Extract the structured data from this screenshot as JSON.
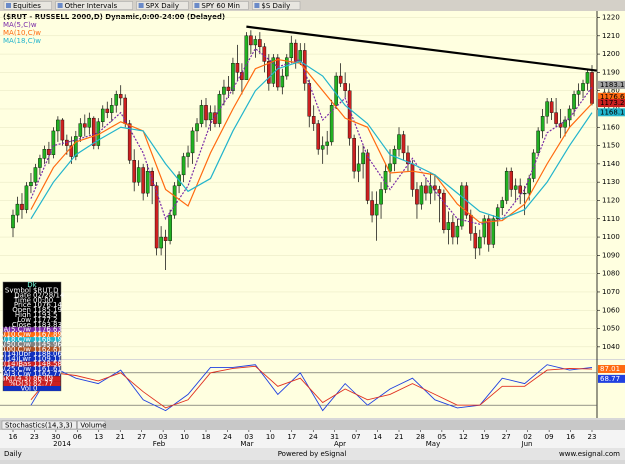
{
  "toolbar": {
    "items": [
      "Equities",
      "Other Intervals",
      "SPX Daily",
      "SPY 60 Min",
      "$S Daily"
    ]
  },
  "chart_data": [
    {
      "type": "candlestick",
      "title": "($RUT - RUSSELL 2000,D) Dynamic,0:00-24:00 (Delayed)",
      "up_color": "#22b022",
      "down_color": "#cc2020",
      "candles": [
        [
          1105,
          1115,
          1100,
          1112
        ],
        [
          1112,
          1122,
          1108,
          1118
        ],
        [
          1118,
          1124,
          1110,
          1115
        ],
        [
          1115,
          1130,
          1113,
          1128
        ],
        [
          1128,
          1135,
          1124,
          1130
        ],
        [
          1130,
          1140,
          1128,
          1138
        ],
        [
          1138,
          1145,
          1134,
          1143
        ],
        [
          1143,
          1150,
          1140,
          1148
        ],
        [
          1148,
          1152,
          1140,
          1145
        ],
        [
          1145,
          1160,
          1143,
          1158
        ],
        [
          1158,
          1166,
          1152,
          1164
        ],
        [
          1164,
          1165,
          1150,
          1153
        ],
        [
          1153,
          1156,
          1145,
          1150
        ],
        [
          1150,
          1155,
          1140,
          1144
        ],
        [
          1144,
          1158,
          1142,
          1155
        ],
        [
          1155,
          1165,
          1152,
          1162
        ],
        [
          1162,
          1167,
          1155,
          1160
        ],
        [
          1160,
          1168,
          1156,
          1165
        ],
        [
          1165,
          1166,
          1148,
          1150
        ],
        [
          1150,
          1165,
          1148,
          1163
        ],
        [
          1163,
          1172,
          1160,
          1170
        ],
        [
          1170,
          1174,
          1165,
          1168
        ],
        [
          1168,
          1176,
          1163,
          1172
        ],
        [
          1172,
          1180,
          1168,
          1178
        ],
        [
          1178,
          1183,
          1172,
          1176
        ],
        [
          1176,
          1178,
          1160,
          1162
        ],
        [
          1162,
          1164,
          1140,
          1142
        ],
        [
          1142,
          1148,
          1125,
          1130
        ],
        [
          1130,
          1142,
          1128,
          1138
        ],
        [
          1138,
          1140,
          1120,
          1124
        ],
        [
          1124,
          1140,
          1122,
          1136
        ],
        [
          1136,
          1138,
          1118,
          1128
        ],
        [
          1128,
          1130,
          1090,
          1094
        ],
        [
          1094,
          1106,
          1090,
          1100
        ],
        [
          1100,
          1104,
          1082,
          1098
        ],
        [
          1098,
          1115,
          1096,
          1112
        ],
        [
          1112,
          1130,
          1110,
          1128
        ],
        [
          1128,
          1136,
          1124,
          1134
        ],
        [
          1134,
          1146,
          1130,
          1144
        ],
        [
          1144,
          1150,
          1138,
          1146
        ],
        [
          1146,
          1160,
          1140,
          1158
        ],
        [
          1158,
          1165,
          1152,
          1162
        ],
        [
          1162,
          1175,
          1160,
          1172
        ],
        [
          1172,
          1176,
          1160,
          1164
        ],
        [
          1164,
          1172,
          1158,
          1168
        ],
        [
          1168,
          1172,
          1160,
          1162
        ],
        [
          1162,
          1180,
          1160,
          1178
        ],
        [
          1178,
          1186,
          1172,
          1182
        ],
        [
          1182,
          1188,
          1176,
          1180
        ],
        [
          1180,
          1198,
          1178,
          1195
        ],
        [
          1195,
          1205,
          1185,
          1190
        ],
        [
          1190,
          1195,
          1178,
          1186
        ],
        [
          1186,
          1212,
          1186,
          1210
        ],
        [
          1210,
          1213,
          1200,
          1205
        ],
        [
          1205,
          1210,
          1198,
          1208
        ],
        [
          1208,
          1212,
          1200,
          1204
        ],
        [
          1204,
          1206,
          1190,
          1196
        ],
        [
          1196,
          1200,
          1180,
          1184
        ],
        [
          1184,
          1200,
          1182,
          1198
        ],
        [
          1198,
          1200,
          1180,
          1182
        ],
        [
          1182,
          1192,
          1178,
          1188
        ],
        [
          1188,
          1200,
          1186,
          1198
        ],
        [
          1198,
          1210,
          1195,
          1206
        ],
        [
          1206,
          1208,
          1192,
          1196
        ],
        [
          1196,
          1206,
          1194,
          1202
        ],
        [
          1202,
          1206,
          1180,
          1184
        ],
        [
          1184,
          1186,
          1160,
          1166
        ],
        [
          1166,
          1172,
          1158,
          1162
        ],
        [
          1162,
          1164,
          1145,
          1148
        ],
        [
          1148,
          1155,
          1140,
          1150
        ],
        [
          1150,
          1158,
          1145,
          1152
        ],
        [
          1152,
          1175,
          1150,
          1172
        ],
        [
          1172,
          1190,
          1170,
          1188
        ],
        [
          1188,
          1195,
          1182,
          1184
        ],
        [
          1184,
          1190,
          1176,
          1180
        ],
        [
          1180,
          1184,
          1150,
          1154
        ],
        [
          1154,
          1156,
          1132,
          1136
        ],
        [
          1136,
          1150,
          1130,
          1140
        ],
        [
          1140,
          1150,
          1132,
          1146
        ],
        [
          1146,
          1148,
          1118,
          1120
        ],
        [
          1120,
          1125,
          1108,
          1112
        ],
        [
          1112,
          1125,
          1098,
          1118
        ],
        [
          1118,
          1130,
          1110,
          1126
        ],
        [
          1126,
          1140,
          1124,
          1136
        ],
        [
          1136,
          1148,
          1130,
          1140
        ],
        [
          1140,
          1150,
          1136,
          1148
        ],
        [
          1148,
          1160,
          1144,
          1156
        ],
        [
          1156,
          1158,
          1142,
          1146
        ],
        [
          1146,
          1150,
          1136,
          1140
        ],
        [
          1140,
          1142,
          1122,
          1126
        ],
        [
          1126,
          1130,
          1110,
          1118
        ],
        [
          1118,
          1130,
          1115,
          1128
        ],
        [
          1128,
          1132,
          1120,
          1124
        ],
        [
          1124,
          1135,
          1118,
          1128
        ],
        [
          1128,
          1134,
          1120,
          1126
        ],
        [
          1126,
          1128,
          1108,
          1124
        ],
        [
          1124,
          1126,
          1102,
          1104
        ],
        [
          1104,
          1114,
          1096,
          1108
        ],
        [
          1108,
          1112,
          1096,
          1100
        ],
        [
          1100,
          1110,
          1096,
          1106
        ],
        [
          1106,
          1130,
          1104,
          1128
        ],
        [
          1128,
          1130,
          1110,
          1112
        ],
        [
          1112,
          1115,
          1098,
          1102
        ],
        [
          1102,
          1106,
          1088,
          1094
        ],
        [
          1094,
          1104,
          1090,
          1100
        ],
        [
          1100,
          1112,
          1096,
          1110
        ],
        [
          1110,
          1112,
          1092,
          1096
        ],
        [
          1096,
          1112,
          1094,
          1110
        ],
        [
          1110,
          1118,
          1106,
          1116
        ],
        [
          1116,
          1122,
          1112,
          1120
        ],
        [
          1120,
          1138,
          1118,
          1136
        ],
        [
          1136,
          1138,
          1122,
          1126
        ],
        [
          1126,
          1132,
          1120,
          1128
        ],
        [
          1128,
          1132,
          1118,
          1124
        ],
        [
          1124,
          1128,
          1112,
          1124
        ],
        [
          1124,
          1134,
          1120,
          1132
        ],
        [
          1132,
          1148,
          1130,
          1146
        ],
        [
          1146,
          1160,
          1144,
          1158
        ],
        [
          1158,
          1170,
          1154,
          1166
        ],
        [
          1166,
          1176,
          1162,
          1174
        ],
        [
          1174,
          1176,
          1164,
          1168
        ],
        [
          1168,
          1176,
          1160,
          1162
        ],
        [
          1162,
          1170,
          1154,
          1160
        ],
        [
          1160,
          1166,
          1155,
          1164
        ],
        [
          1164,
          1172,
          1160,
          1170
        ],
        [
          1170,
          1180,
          1166,
          1178
        ],
        [
          1178,
          1184,
          1172,
          1180
        ],
        [
          1180,
          1186,
          1176,
          1184
        ],
        [
          1184,
          1192,
          1180,
          1190
        ],
        [
          1190,
          1194,
          1172,
          1173
        ]
      ],
      "x": [
        4,
        9,
        14,
        19,
        24,
        29,
        34,
        39,
        44,
        49,
        54,
        59,
        64,
        69,
        74,
        79,
        84,
        89,
        94,
        99,
        104,
        109,
        114,
        119,
        124,
        129
      ],
      "series": [
        {
          "name": "MA(5,C)w",
          "color": "#7a2aa8",
          "dashed": true,
          "values": [
            1121,
            1150,
            1153,
            1157,
            1168,
            1146,
            1110,
            1128,
            1162,
            1181,
            1203,
            1193,
            1197,
            1164,
            1176,
            1144,
            1126,
            1143,
            1125,
            1110,
            1107,
            1110,
            1126,
            1157,
            1165,
            1182
          ]
        },
        {
          "name": "MA(10,C)w",
          "color": "#ff6a10",
          "dashed": false,
          "values": [
            1115,
            1138,
            1152,
            1156,
            1163,
            1158,
            1126,
            1117,
            1146,
            1170,
            1192,
            1197,
            1195,
            1180,
            1165,
            1160,
            1135,
            1136,
            1134,
            1118,
            1108,
            1109,
            1118,
            1140,
            1160,
            1173
          ]
        },
        {
          "name": "MA(18,C)w",
          "color": "#22b4cc",
          "dashed": false,
          "values": [
            1110,
            1130,
            1145,
            1153,
            1160,
            1158,
            1140,
            1125,
            1132,
            1158,
            1180,
            1192,
            1196,
            1188,
            1172,
            1162,
            1145,
            1140,
            1134,
            1124,
            1114,
            1110,
            1115,
            1130,
            1150,
            1168
          ]
        }
      ],
      "trendline": {
        "x": [
          52,
          130
        ],
        "values": [
          1215,
          1191
        ]
      },
      "price_flags": [
        {
          "value": 1183.18,
          "color": "#a0a0a0"
        },
        {
          "value": 1176.64,
          "color": "#ff6a10"
        },
        {
          "value": 1173.24,
          "color": "#cc2020"
        },
        {
          "value": 1168.19,
          "color": "#22b4cc"
        }
      ],
      "ylim": [
        1035,
        1223
      ],
      "yticks": [
        1040,
        1050,
        1060,
        1070,
        1080,
        1090,
        1100,
        1110,
        1120,
        1130,
        1140,
        1150,
        1160,
        1170,
        1180,
        1190,
        1200,
        1210,
        1220
      ],
      "grid": true,
      "xtick_labels": [
        "16",
        "23",
        "30",
        "06",
        "13",
        "21",
        "27",
        "03",
        "10",
        "18",
        "24",
        "03",
        "10",
        "17",
        "24",
        "31",
        "07",
        "14",
        "21",
        "28",
        "05",
        "12",
        "19",
        "27",
        "02",
        "09",
        "16",
        "23"
      ],
      "month_labels": [
        "2014",
        "Feb",
        "Mar",
        "Apr",
        "May",
        "Jun"
      ]
    },
    {
      "type": "line",
      "x": [
        4,
        9,
        14,
        19,
        24,
        29,
        34,
        39,
        44,
        49,
        54,
        59,
        64,
        69,
        74,
        79,
        84,
        89,
        94,
        99,
        104,
        109,
        114,
        119,
        124,
        129
      ],
      "series": [
        {
          "color": "#2040e0",
          "values": [
            20,
            90,
            70,
            60,
            85,
            30,
            10,
            40,
            90,
            90,
            95,
            40,
            80,
            10,
            60,
            20,
            50,
            70,
            30,
            15,
            20,
            70,
            60,
            95,
            85,
            90
          ]
        },
        {
          "color": "#e03020",
          "values": [
            30,
            80,
            75,
            65,
            80,
            45,
            15,
            30,
            80,
            88,
            92,
            55,
            70,
            25,
            50,
            30,
            40,
            60,
            40,
            20,
            20,
            55,
            55,
            85,
            88,
            87
          ]
        }
      ],
      "ylim": [
        0,
        100
      ],
      "reference_lines": [
        20,
        80
      ],
      "price_flags": [
        {
          "value": 87.01,
          "color": "#ff6a10"
        },
        {
          "value": 68.77,
          "color": "#2040e0"
        }
      ]
    }
  ],
  "data_window": {
    "title": "Dk",
    "rows": [
      {
        "label": "Symbol",
        "value": "$RUT.D",
        "color": "#000000"
      },
      {
        "label": "Date",
        "value": "02/28/14",
        "color": "#000000"
      },
      {
        "label": "Time",
        "value": "00:00",
        "color": "#000000"
      },
      {
        "label": "Price",
        "value": "1076.14",
        "color": "#000000"
      },
      {
        "label": "Open",
        "value": "1185.19",
        "color": "#000000"
      },
      {
        "label": "High",
        "value": "1193.5",
        "color": "#000000"
      },
      {
        "label": "Low",
        "value": "1177.2",
        "color": "#000000"
      },
      {
        "label": "Close",
        "value": "1183.83",
        "color": "#000000"
      },
      {
        "label": "MA(5,C)w",
        "value": "1176.63",
        "color": "#7a2aa8"
      },
      {
        "label": "MA(10,C)w",
        "value": "1167.89",
        "color": "#ff6a10"
      },
      {
        "label": "MA(18,C)w",
        "value": "1168.19",
        "color": "#22b4cc"
      },
      {
        "label": "MA(50,C)w",
        "value": "1145.96",
        "color": "#808080"
      },
      {
        "label": "MA(100,C)w",
        "value": "1162.61",
        "color": "#b05020"
      },
      {
        "label": "DC(14)Upr",
        "value": "1188.06",
        "color": "#1030c0"
      },
      {
        "label": "DC(14)Lwr",
        "value": "1109.11",
        "color": "#1030c0"
      },
      {
        "label": "DC(14)Bas",
        "value": "1148.58",
        "color": "#cc2020"
      },
      {
        "label": "MA(25,C)w",
        "value": "1161.61",
        "color": "#1030c0"
      },
      {
        "label": "MA(3,C)w",
        "value": "1162.77",
        "color": "#1030c0"
      },
      {
        "label": "%K(14,3)",
        "value": "86.09",
        "color": "#cc2020"
      },
      {
        "label": "%D(3)",
        "value": "82.77",
        "color": "#cc2020"
      },
      {
        "label": "Vol",
        "value": "0",
        "color": "#1030c0"
      }
    ]
  },
  "tabs": [
    "Stochastics(14,3,3)",
    "Volume"
  ],
  "footer": {
    "left": "Daily",
    "center": "Powered by eSignal",
    "right": "www.esignal.com"
  }
}
